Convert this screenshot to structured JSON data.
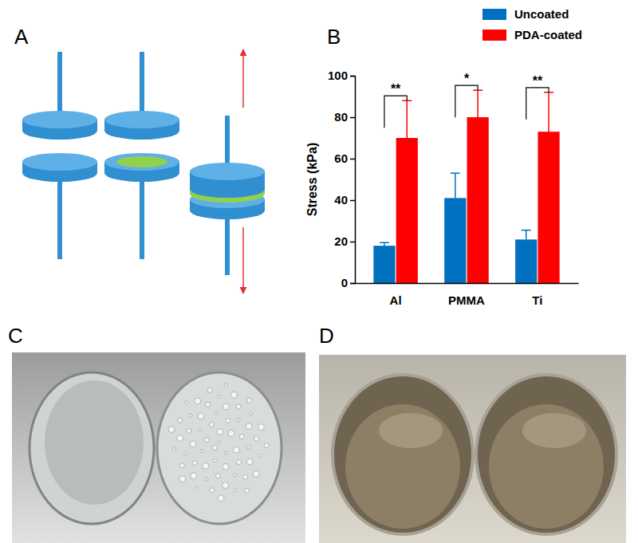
{
  "panels": [
    "A",
    "B",
    "C",
    "D"
  ],
  "chart_data": {
    "type": "bar",
    "y_label": "Stress (kPa)",
    "categories": [
      "Al",
      "PMMA",
      "Ti"
    ],
    "series": [
      {
        "name": "Uncoated",
        "color": "#0070c0",
        "values": [
          18,
          41,
          21
        ],
        "errors": [
          1.5,
          12,
          4.5
        ]
      },
      {
        "name": "PDA-coated",
        "color": "#ff0000",
        "values": [
          70,
          80,
          73
        ],
        "errors": [
          18,
          13,
          19
        ]
      }
    ],
    "significance": [
      "**",
      "*",
      "**"
    ],
    "ylim": [
      0,
      100
    ],
    "yticks": [
      0,
      20,
      40,
      60,
      80,
      100
    ],
    "grid": false,
    "legend": "top-right"
  }
}
